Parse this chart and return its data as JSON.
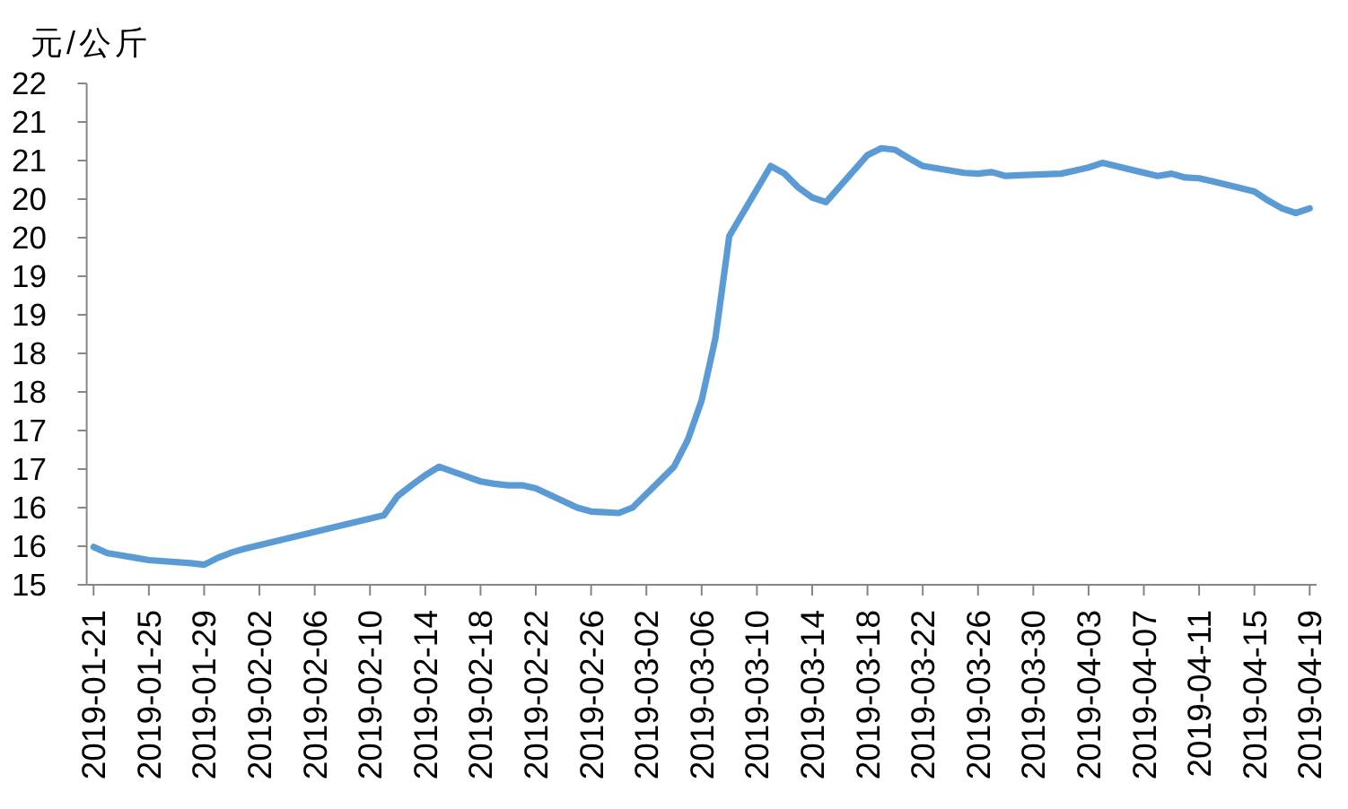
{
  "chart_data": {
    "type": "line",
    "ylabel": "元/公斤",
    "x": [
      "2019-01-21",
      "2019-01-22",
      "2019-01-23",
      "2019-01-24",
      "2019-01-25",
      "2019-01-28",
      "2019-01-29",
      "2019-01-30",
      "2019-01-31",
      "2019-02-01",
      "2019-02-11",
      "2019-02-12",
      "2019-02-13",
      "2019-02-14",
      "2019-02-15",
      "2019-02-18",
      "2019-02-19",
      "2019-02-20",
      "2019-02-21",
      "2019-02-22",
      "2019-02-25",
      "2019-02-26",
      "2019-02-27",
      "2019-02-28",
      "2019-03-01",
      "2019-03-04",
      "2019-03-05",
      "2019-03-06",
      "2019-03-07",
      "2019-03-08",
      "2019-03-11",
      "2019-03-12",
      "2019-03-13",
      "2019-03-14",
      "2019-03-15",
      "2019-03-18",
      "2019-03-19",
      "2019-03-20",
      "2019-03-21",
      "2019-03-22",
      "2019-03-25",
      "2019-03-26",
      "2019-03-27",
      "2019-03-28",
      "2019-03-29",
      "2019-04-01",
      "2019-04-02",
      "2019-04-03",
      "2019-04-04",
      "2019-04-08",
      "2019-04-09",
      "2019-04-10",
      "2019-04-11",
      "2019-04-12",
      "2019-04-15",
      "2019-04-16",
      "2019-04-17",
      "2019-04-18",
      "2019-04-19"
    ],
    "series": [
      {
        "color": "#5b9bd5",
        "values": [
          15.49,
          15.41,
          15.38,
          15.35,
          15.32,
          15.28,
          15.26,
          15.35,
          15.42,
          15.47,
          15.9,
          16.15,
          16.29,
          16.42,
          16.53,
          16.34,
          16.31,
          16.29,
          16.29,
          16.25,
          16.0,
          15.95,
          15.94,
          15.93,
          16.0,
          16.53,
          16.88,
          17.39,
          18.2,
          19.52,
          20.43,
          20.33,
          20.15,
          20.02,
          19.96,
          20.57,
          20.66,
          20.64,
          20.53,
          20.43,
          20.34,
          20.33,
          20.35,
          20.3,
          20.31,
          20.33,
          20.37,
          20.41,
          20.47,
          20.3,
          20.33,
          20.28,
          20.27,
          20.23,
          20.1,
          19.98,
          19.88,
          19.82,
          19.88
        ]
      }
    ],
    "xlim": [
      "2019-01-20T12:00",
      "2019-04-19T12:00"
    ],
    "xticks": [
      "2019-01-21",
      "2019-01-25",
      "2019-01-29",
      "2019-02-02",
      "2019-02-06",
      "2019-02-10",
      "2019-02-14",
      "2019-02-18",
      "2019-02-22",
      "2019-02-26",
      "2019-03-02",
      "2019-03-06",
      "2019-03-10",
      "2019-03-14",
      "2019-03-18",
      "2019-03-22",
      "2019-03-26",
      "2019-03-30",
      "2019-04-03",
      "2019-04-07",
      "2019-04-11",
      "2019-04-15",
      "2019-04-19"
    ],
    "ylim": [
      15,
      21.5
    ],
    "yticks": [
      15,
      {
        "value": 15.5,
        "label": "16"
      },
      16,
      {
        "value": 16.5,
        "label": "17"
      },
      17,
      {
        "value": 17.5,
        "label": "18"
      },
      18,
      {
        "value": 18.5,
        "label": "19"
      },
      19,
      {
        "value": 19.5,
        "label": "20"
      },
      20,
      {
        "value": 20.5,
        "label": "21"
      },
      21,
      {
        "value": 21.5,
        "label": "22"
      }
    ]
  }
}
